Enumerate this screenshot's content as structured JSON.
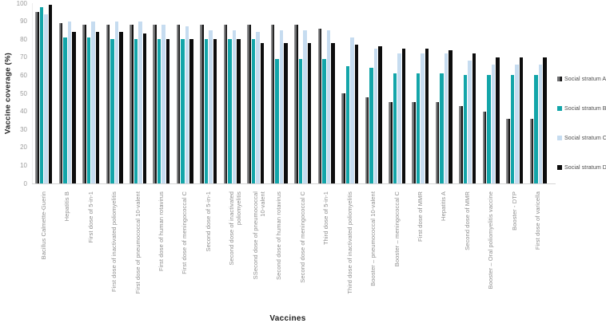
{
  "chart_data": {
    "type": "bar",
    "title": "",
    "xlabel": "Vaccines",
    "ylabel": "Vaccine coverage (%)",
    "ylim": [
      0,
      100
    ],
    "yticks": [
      0,
      10,
      20,
      30,
      40,
      50,
      60,
      70,
      80,
      90,
      100
    ],
    "grid": false,
    "legend_position": "right",
    "categories": [
      "Bacillus Calmette-Guerin",
      "Hepatitis B",
      "First dose of 5-in-1",
      "First dose of inactivated poliomyelitis",
      "First dose of pneumococcal 10-valent",
      "First dose of human rotavirus",
      "First dose of meningococcal C",
      "Second dose of 5-in-1",
      "Second dose of inactivated\npoliomyelitis",
      "SSecond dose of pneumococcal\n10-valent",
      "Second dose of human rotavirus",
      "Second dose of meningococcal C",
      "Third dose of 5-in-1",
      "Third dose of inactivated poliomyelitis",
      "Booster – pneumococcal 10-valent",
      "Booster – meningococcal C",
      "First dose of MMR",
      "Hepatitis A",
      "Second dose of MMR",
      "Booster – Oral poliomyelitis vaccine",
      "Booster - DTP",
      "First dose of varicella"
    ],
    "series": [
      {
        "name": "Social stratum A",
        "color": "#6f7072",
        "edge": "#141414",
        "highlight": "#b4b4b4",
        "values": [
          95,
          89,
          88,
          88,
          88,
          88,
          88,
          88,
          88,
          88,
          88,
          88,
          86,
          50,
          48,
          45,
          45,
          45,
          43,
          40,
          36,
          36
        ]
      },
      {
        "name": "Social stratum B",
        "color": "#13a5a9",
        "values": [
          98,
          81,
          81,
          80,
          80,
          80,
          80,
          80,
          80,
          80,
          69,
          69,
          69,
          65,
          64,
          61,
          61,
          61,
          60,
          60,
          60,
          60
        ]
      },
      {
        "name": "Social stratum C",
        "color": "#c6dcf0",
        "values": [
          94,
          90,
          90,
          90,
          90,
          88,
          87,
          85,
          85,
          84,
          85,
          85,
          85,
          81,
          75,
          72,
          72,
          72,
          68,
          66,
          66,
          66
        ]
      },
      {
        "name": "Social stratum D",
        "color": "#0d0d0d",
        "values": [
          99,
          84,
          84,
          84,
          83,
          80,
          80,
          80,
          80,
          78,
          78,
          78,
          78,
          77,
          76,
          75,
          75,
          74,
          72,
          70,
          70,
          70
        ]
      }
    ]
  }
}
